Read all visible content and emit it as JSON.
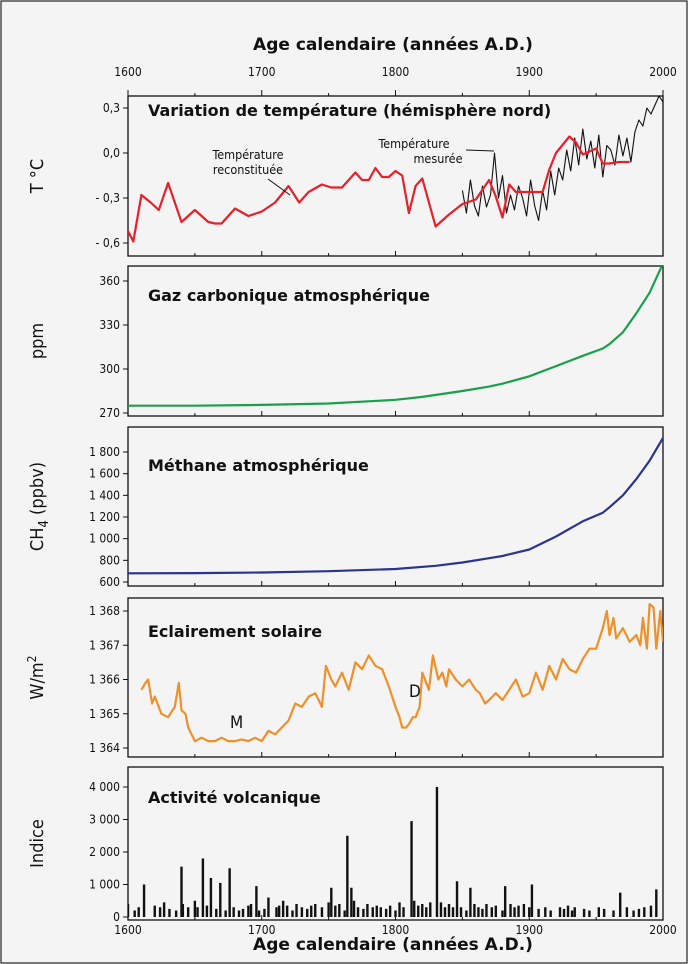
{
  "axis_title_top": "Age calendaire (années A.D.)",
  "axis_title_bottom": "Age calendaire (années A.D.)",
  "x_ticks": [
    "1600",
    "1700",
    "1800",
    "1900",
    "2000"
  ],
  "chart_data": [
    {
      "type": "line",
      "title": "Variation de température (hémisphère nord)",
      "ylabel": "T °C",
      "xlim": [
        1600,
        2000
      ],
      "ylim": [
        -0.6,
        0.4
      ],
      "yticks": [
        0.3,
        0.0,
        -0.3,
        -0.6
      ],
      "ytick_labels": [
        "0,3",
        "0,0",
        "- 0,3",
        "- 0,6"
      ],
      "annotations": [
        {
          "text": "Température",
          "line2": "reconstituée"
        },
        {
          "text": "Température",
          "line2": "mesurée"
        }
      ],
      "series": [
        {
          "name": "Température reconstituée",
          "color": "#e8202a",
          "x": [
            1600,
            1604,
            1610,
            1617,
            1623,
            1630,
            1640,
            1650,
            1660,
            1665,
            1670,
            1680,
            1690,
            1700,
            1710,
            1720,
            1728,
            1735,
            1745,
            1752,
            1760,
            1770,
            1775,
            1780,
            1785,
            1790,
            1795,
            1800,
            1805,
            1810,
            1815,
            1820,
            1830,
            1840,
            1850,
            1860,
            1870,
            1875,
            1880,
            1885,
            1890,
            1900,
            1910,
            1915,
            1920,
            1930,
            1935,
            1940,
            1950,
            1955,
            1960,
            1967,
            1975
          ],
          "y": [
            -0.52,
            -0.59,
            -0.28,
            -0.33,
            -0.38,
            -0.2,
            -0.46,
            -0.38,
            -0.46,
            -0.47,
            -0.47,
            -0.37,
            -0.42,
            -0.39,
            -0.33,
            -0.22,
            -0.33,
            -0.26,
            -0.21,
            -0.23,
            -0.23,
            -0.13,
            -0.18,
            -0.18,
            -0.1,
            -0.16,
            -0.16,
            -0.12,
            -0.15,
            -0.4,
            -0.22,
            -0.17,
            -0.49,
            -0.41,
            -0.34,
            -0.31,
            -0.18,
            -0.29,
            -0.43,
            -0.21,
            -0.26,
            -0.26,
            -0.26,
            -0.11,
            0.0,
            0.11,
            0.07,
            -0.01,
            0.03,
            -0.07,
            -0.07,
            -0.06,
            -0.06
          ]
        },
        {
          "name": "Température mesurée",
          "color": "#111111",
          "x": [
            1850,
            1853,
            1856,
            1859,
            1862,
            1865,
            1868,
            1871,
            1874,
            1877,
            1880,
            1883,
            1886,
            1889,
            1892,
            1895,
            1898,
            1901,
            1904,
            1907,
            1910,
            1913,
            1916,
            1919,
            1922,
            1925,
            1928,
            1931,
            1934,
            1937,
            1940,
            1943,
            1946,
            1949,
            1952,
            1955,
            1958,
            1961,
            1964,
            1967,
            1970,
            1973,
            1976,
            1979,
            1982,
            1985,
            1988,
            1991,
            1994,
            1997,
            2000
          ],
          "y": [
            -0.25,
            -0.4,
            -0.18,
            -0.35,
            -0.42,
            -0.22,
            -0.36,
            -0.28,
            0.0,
            -0.3,
            -0.15,
            -0.4,
            -0.28,
            -0.38,
            -0.22,
            -0.3,
            -0.42,
            -0.18,
            -0.35,
            -0.45,
            -0.25,
            -0.38,
            -0.12,
            -0.28,
            -0.1,
            -0.18,
            0.02,
            -0.12,
            0.1,
            -0.08,
            0.16,
            -0.04,
            0.08,
            -0.1,
            0.12,
            -0.16,
            0.05,
            0.02,
            -0.08,
            0.12,
            -0.02,
            0.1,
            -0.06,
            0.14,
            0.22,
            0.18,
            0.3,
            0.26,
            0.32,
            0.38,
            0.34
          ]
        }
      ]
    },
    {
      "type": "line",
      "title": "Gaz carbonique atmosphérique",
      "ylabel": "ppm",
      "xlim": [
        1600,
        2000
      ],
      "ylim": [
        270,
        375
      ],
      "yticks": [
        360,
        330,
        300,
        270
      ],
      "ytick_labels": [
        "360",
        "330",
        "300",
        "270"
      ],
      "series": [
        {
          "color": "#1aa04a",
          "x": [
            1600,
            1650,
            1700,
            1750,
            1800,
            1820,
            1850,
            1870,
            1880,
            1900,
            1920,
            1940,
            1955,
            1960,
            1970,
            1980,
            1990,
            2000
          ],
          "y": [
            275,
            275,
            275.5,
            276.5,
            279,
            281,
            285,
            288,
            290,
            295,
            302,
            309,
            314,
            317,
            325,
            338,
            352,
            372
          ]
        }
      ]
    },
    {
      "type": "line",
      "title": "Méthane atmosphérique",
      "ylabel": "CH4 (ppbv)",
      "xlim": [
        1600,
        2000
      ],
      "ylim": [
        600,
        1960
      ],
      "yticks": [
        1800,
        1600,
        1400,
        1200,
        1000,
        800,
        600
      ],
      "ytick_labels": [
        "1 800",
        "1 600",
        "1 400",
        "1 200",
        "1 000",
        "800",
        "600"
      ],
      "series": [
        {
          "color": "#2b3490",
          "x": [
            1600,
            1650,
            1700,
            1750,
            1800,
            1830,
            1850,
            1870,
            1880,
            1900,
            1920,
            1940,
            1955,
            1960,
            1970,
            1980,
            1990,
            2000
          ],
          "y": [
            680,
            682,
            688,
            700,
            720,
            750,
            780,
            820,
            840,
            900,
            1020,
            1160,
            1240,
            1290,
            1400,
            1550,
            1720,
            1930
          ]
        }
      ]
    },
    {
      "type": "line",
      "title": "Eclairement solaire",
      "ylabel": "W/m2",
      "xlim": [
        1600,
        2000
      ],
      "ylim": [
        1364,
        1368.4
      ],
      "yticks": [
        1368,
        1367,
        1366,
        1365,
        1364
      ],
      "ytick_labels": [
        "1 368",
        "1 367",
        "1 366",
        "1 365",
        "1 364"
      ],
      "annotations": [
        {
          "text": "M"
        },
        {
          "text": "D"
        }
      ],
      "series": [
        {
          "color": "#f0902a",
          "x": [
            1610,
            1613,
            1615,
            1618,
            1620,
            1625,
            1630,
            1635,
            1638,
            1640,
            1643,
            1645,
            1650,
            1655,
            1660,
            1665,
            1670,
            1675,
            1680,
            1685,
            1690,
            1695,
            1700,
            1705,
            1710,
            1715,
            1720,
            1725,
            1730,
            1735,
            1740,
            1745,
            1748,
            1752,
            1755,
            1760,
            1765,
            1770,
            1775,
            1780,
            1785,
            1790,
            1795,
            1800,
            1803,
            1805,
            1808,
            1810,
            1813,
            1815,
            1818,
            1820,
            1825,
            1828,
            1832,
            1835,
            1838,
            1840,
            1845,
            1850,
            1855,
            1860,
            1863,
            1867,
            1870,
            1875,
            1880,
            1885,
            1890,
            1895,
            1900,
            1905,
            1910,
            1915,
            1920,
            1925,
            1930,
            1935,
            1940,
            1945,
            1950,
            1955,
            1958,
            1960,
            1963,
            1965,
            1970,
            1975,
            1980,
            1983,
            1985,
            1988,
            1990,
            1993,
            1995,
            1998,
            2000
          ],
          "y": [
            1365.7,
            1365.9,
            1366.0,
            1365.3,
            1365.5,
            1365.0,
            1364.9,
            1365.2,
            1365.9,
            1365.1,
            1365.0,
            1364.6,
            1364.2,
            1364.3,
            1364.2,
            1364.2,
            1364.3,
            1364.2,
            1364.2,
            1364.25,
            1364.2,
            1364.3,
            1364.2,
            1364.5,
            1364.4,
            1364.6,
            1364.8,
            1365.3,
            1365.2,
            1365.5,
            1365.6,
            1365.2,
            1366.4,
            1366.0,
            1365.8,
            1366.2,
            1365.7,
            1366.5,
            1366.3,
            1366.7,
            1366.4,
            1366.3,
            1365.8,
            1365.2,
            1364.9,
            1364.6,
            1364.6,
            1364.7,
            1364.9,
            1364.9,
            1365.2,
            1366.2,
            1365.7,
            1366.7,
            1366.0,
            1366.2,
            1365.8,
            1366.3,
            1366.0,
            1365.8,
            1366.0,
            1365.7,
            1365.6,
            1365.3,
            1365.4,
            1365.6,
            1365.4,
            1365.7,
            1366.0,
            1365.5,
            1365.6,
            1366.2,
            1365.7,
            1366.4,
            1366.0,
            1366.6,
            1366.3,
            1366.2,
            1366.6,
            1366.9,
            1366.9,
            1367.5,
            1368.0,
            1367.3,
            1367.8,
            1367.2,
            1367.5,
            1367.1,
            1367.3,
            1367.0,
            1367.8,
            1366.9,
            1368.2,
            1368.1,
            1366.9,
            1368.0,
            1367.1
          ]
        }
      ]
    },
    {
      "type": "bar",
      "title": "Activité volcanique",
      "ylabel": "Indice",
      "xlim": [
        1600,
        2000
      ],
      "ylim": [
        0,
        4300
      ],
      "yticks": [
        4000,
        3000,
        2000,
        1000,
        0
      ],
      "ytick_labels": [
        "4 000",
        "3 000",
        "2 000",
        "1 000",
        "0"
      ],
      "x": [
        1600,
        1605,
        1608,
        1612,
        1620,
        1624,
        1627,
        1631,
        1636,
        1640,
        1641,
        1645,
        1650,
        1652,
        1656,
        1659,
        1662,
        1666,
        1669,
        1673,
        1676,
        1679,
        1683,
        1686,
        1690,
        1692,
        1696,
        1698,
        1702,
        1705,
        1711,
        1713,
        1716,
        1719,
        1723,
        1726,
        1730,
        1734,
        1737,
        1740,
        1745,
        1750,
        1752,
        1755,
        1758,
        1762,
        1764,
        1767,
        1769,
        1772,
        1776,
        1779,
        1783,
        1786,
        1789,
        1793,
        1796,
        1800,
        1803,
        1806,
        1812,
        1814,
        1817,
        1820,
        1823,
        1826,
        1831,
        1834,
        1837,
        1840,
        1843,
        1846,
        1849,
        1853,
        1856,
        1859,
        1862,
        1865,
        1868,
        1872,
        1875,
        1880,
        1882,
        1886,
        1889,
        1892,
        1896,
        1900,
        1902,
        1907,
        1912,
        1916,
        1923,
        1926,
        1929,
        1932,
        1934,
        1941,
        1945,
        1952,
        1956,
        1963,
        1968,
        1973,
        1978,
        1982,
        1986,
        1991,
        1995
      ],
      "values": [
        400,
        200,
        300,
        1000,
        350,
        300,
        450,
        250,
        200,
        1550,
        400,
        300,
        500,
        300,
        1800,
        350,
        1200,
        250,
        1050,
        200,
        1500,
        300,
        200,
        250,
        350,
        400,
        950,
        200,
        250,
        600,
        300,
        350,
        500,
        350,
        200,
        400,
        300,
        250,
        350,
        400,
        300,
        450,
        900,
        350,
        400,
        200,
        2500,
        900,
        500,
        300,
        250,
        400,
        300,
        350,
        300,
        250,
        350,
        200,
        450,
        300,
        2950,
        500,
        350,
        400,
        300,
        450,
        4000,
        450,
        300,
        400,
        300,
        1100,
        300,
        200,
        900,
        400,
        300,
        250,
        400,
        300,
        350,
        200,
        950,
        400,
        300,
        350,
        400,
        300,
        1000,
        250,
        300,
        200,
        300,
        250,
        350,
        200,
        300,
        250,
        200,
        300,
        250,
        200,
        750,
        300,
        200,
        250,
        300,
        350,
        850
      ]
    }
  ]
}
